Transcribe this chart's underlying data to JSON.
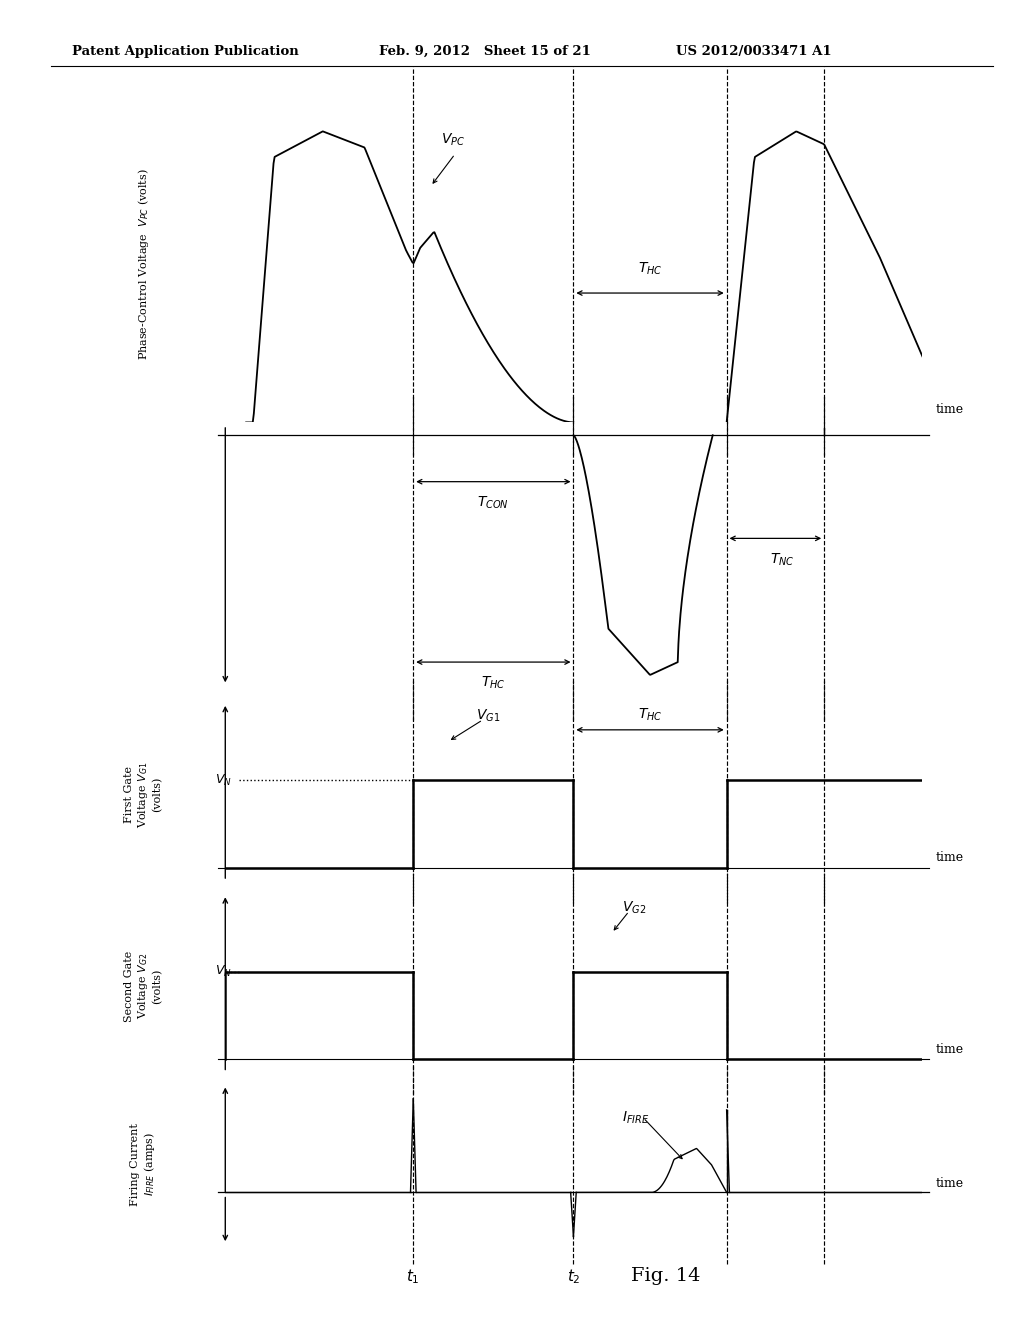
{
  "header_left": "Patent Application Publication",
  "header_mid": "Feb. 9, 2012   Sheet 15 of 21",
  "header_right": "US 2012/0033471 A1",
  "fig_label": "Fig. 14",
  "background_color": "#ffffff",
  "t1": 0.27,
  "t2": 0.5,
  "t3": 0.72,
  "t4": 0.86
}
